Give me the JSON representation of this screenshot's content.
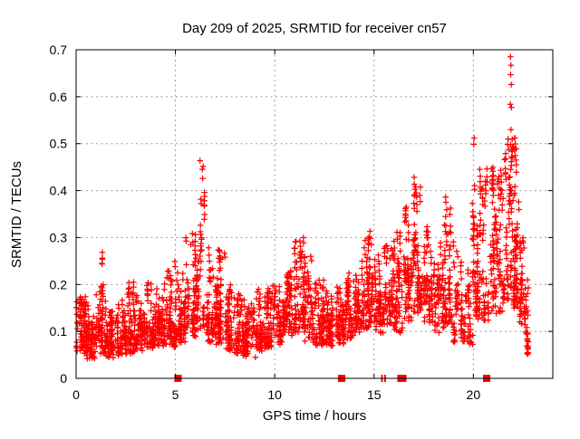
{
  "figure": {
    "background": "#ffffff",
    "text_color": "#000000",
    "grid_color": "#9a9a9a",
    "border_color": "#000000"
  },
  "chart_data": {
    "type": "scatter",
    "title": "Day 209 of 2025, SRMTID for receiver cn57",
    "xlabel": "GPS time / hours",
    "ylabel": "SRMTID / TECUs",
    "series_name": "SRMTID",
    "marker": "plus",
    "marker_color": "#ff0000",
    "marker_size": 3.3,
    "legend": "none",
    "grid": "dotted",
    "xlim": [
      0,
      24
    ],
    "ylim": [
      0,
      0.7
    ],
    "xticks": [
      0,
      5,
      10,
      15,
      20
    ],
    "yticks": [
      0,
      0.1,
      0.2,
      0.3,
      0.4,
      0.5,
      0.6,
      0.7
    ],
    "xtick_labels": [
      "0",
      "5",
      "10",
      "15",
      "20"
    ],
    "ytick_labels": [
      "0",
      "0.1",
      "0.2",
      "0.3",
      "0.4",
      "0.5",
      "0.6",
      "0.7"
    ],
    "seed": 42,
    "band_bias": 2.1,
    "spike_bias": 1.0,
    "density_bands_comment": "each entry = [hourStart, hourEnd, yMin, yMax, pointCount] of the dense + marker band as read from the plot",
    "density_bands": [
      [
        0.0,
        0.5,
        0.055,
        0.16,
        80
      ],
      [
        0.5,
        1.0,
        0.045,
        0.145,
        70
      ],
      [
        1.0,
        1.5,
        0.05,
        0.18,
        65
      ],
      [
        1.5,
        2.0,
        0.045,
        0.135,
        65
      ],
      [
        2.0,
        2.5,
        0.05,
        0.155,
        62
      ],
      [
        2.5,
        3.0,
        0.055,
        0.19,
        65
      ],
      [
        3.0,
        3.5,
        0.06,
        0.165,
        62
      ],
      [
        3.5,
        4.0,
        0.065,
        0.19,
        62
      ],
      [
        4.0,
        4.5,
        0.07,
        0.205,
        68
      ],
      [
        4.5,
        5.0,
        0.07,
        0.22,
        68
      ],
      [
        5.0,
        5.5,
        0.08,
        0.23,
        62
      ],
      [
        5.5,
        6.0,
        0.09,
        0.3,
        55
      ],
      [
        6.0,
        6.5,
        0.1,
        0.31,
        58
      ],
      [
        6.5,
        7.0,
        0.08,
        0.27,
        58
      ],
      [
        7.0,
        7.5,
        0.07,
        0.26,
        65
      ],
      [
        7.5,
        8.0,
        0.06,
        0.185,
        68
      ],
      [
        8.0,
        8.5,
        0.05,
        0.165,
        68
      ],
      [
        8.5,
        9.0,
        0.045,
        0.155,
        62
      ],
      [
        9.0,
        9.5,
        0.06,
        0.175,
        62
      ],
      [
        9.5,
        10.0,
        0.065,
        0.19,
        62
      ],
      [
        10.0,
        10.5,
        0.075,
        0.185,
        62
      ],
      [
        10.5,
        11.0,
        0.09,
        0.225,
        62
      ],
      [
        11.0,
        11.5,
        0.1,
        0.29,
        68
      ],
      [
        11.5,
        12.0,
        0.08,
        0.26,
        62
      ],
      [
        12.0,
        12.5,
        0.07,
        0.195,
        68
      ],
      [
        12.5,
        13.0,
        0.07,
        0.175,
        64
      ],
      [
        13.0,
        13.5,
        0.075,
        0.185,
        62
      ],
      [
        13.5,
        14.0,
        0.085,
        0.21,
        62
      ],
      [
        14.0,
        14.5,
        0.1,
        0.235,
        62
      ],
      [
        14.5,
        15.0,
        0.11,
        0.3,
        62
      ],
      [
        15.0,
        15.5,
        0.1,
        0.26,
        62
      ],
      [
        15.5,
        16.0,
        0.115,
        0.27,
        62
      ],
      [
        16.0,
        16.5,
        0.1,
        0.3,
        64
      ],
      [
        16.5,
        17.0,
        0.12,
        0.35,
        68
      ],
      [
        17.0,
        17.5,
        0.14,
        0.4,
        68
      ],
      [
        17.5,
        18.0,
        0.12,
        0.31,
        64
      ],
      [
        18.0,
        18.5,
        0.1,
        0.31,
        62
      ],
      [
        18.5,
        19.0,
        0.12,
        0.36,
        62
      ],
      [
        19.0,
        19.5,
        0.08,
        0.26,
        52
      ],
      [
        19.5,
        20.0,
        0.075,
        0.24,
        46
      ],
      [
        20.0,
        20.5,
        0.13,
        0.5,
        70
      ],
      [
        20.5,
        21.0,
        0.12,
        0.44,
        62
      ],
      [
        21.0,
        21.5,
        0.14,
        0.46,
        62
      ],
      [
        21.5,
        22.0,
        0.17,
        0.5,
        62
      ],
      [
        22.0,
        22.3,
        0.15,
        0.42,
        60
      ],
      [
        22.3,
        22.55,
        0.12,
        0.3,
        40
      ],
      [
        22.55,
        22.78,
        0.055,
        0.2,
        32
      ]
    ],
    "spike_columns_comment": "narrow vertical clusters above the band = [hourStart, hourEnd, yMin, yMax, pointCount]",
    "spike_columns": [
      [
        1.28,
        1.4,
        0.14,
        0.26,
        10
      ],
      [
        4.95,
        5.15,
        0.14,
        0.245,
        10
      ],
      [
        6.25,
        6.45,
        0.27,
        0.47,
        16
      ],
      [
        7.1,
        7.3,
        0.17,
        0.26,
        12
      ],
      [
        11.2,
        11.5,
        0.18,
        0.29,
        14
      ],
      [
        14.7,
        14.9,
        0.2,
        0.3,
        10
      ],
      [
        17.0,
        17.15,
        0.3,
        0.42,
        8
      ],
      [
        18.6,
        18.75,
        0.28,
        0.38,
        8
      ],
      [
        19.9,
        20.05,
        0.2,
        0.36,
        8
      ],
      [
        20.25,
        20.45,
        0.3,
        0.52,
        14
      ],
      [
        21.3,
        21.5,
        0.28,
        0.46,
        12
      ],
      [
        21.8,
        21.98,
        0.3,
        0.5,
        12
      ],
      [
        22.05,
        22.2,
        0.3,
        0.5,
        10
      ]
    ],
    "top_outliers_comment": "highest individual points [hour, TECUs]",
    "top_outliers": [
      [
        21.87,
        0.685
      ],
      [
        21.89,
        0.667
      ],
      [
        21.88,
        0.647
      ],
      [
        21.91,
        0.626
      ],
      [
        21.86,
        0.584
      ],
      [
        21.92,
        0.577
      ],
      [
        21.89,
        0.53
      ],
      [
        22.08,
        0.512
      ],
      [
        22.02,
        0.492
      ]
    ],
    "zero_markers_comment": "red filled squares sitting on the y=0 axis [hourCenter, widthHours]",
    "zero_markers": [
      [
        5.13,
        0.37
      ],
      [
        13.37,
        0.37
      ],
      [
        15.4,
        0.09
      ],
      [
        15.56,
        0.09
      ],
      [
        16.4,
        0.46
      ],
      [
        20.67,
        0.37
      ]
    ]
  }
}
